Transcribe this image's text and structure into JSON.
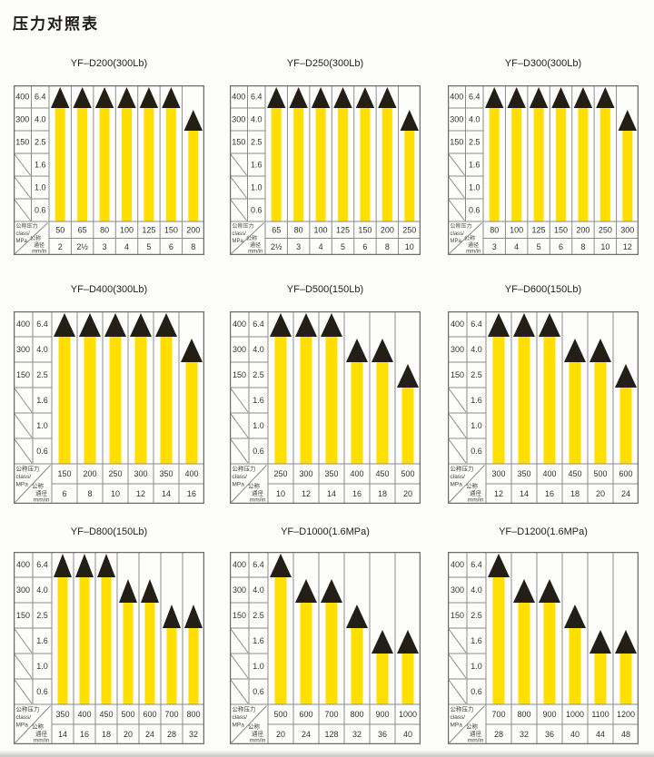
{
  "page_title": "压力对照表",
  "axis": {
    "class_rows": [
      "400",
      "300",
      "150"
    ],
    "mpa_rows": [
      "6.4",
      "4.0",
      "2.5",
      "1.6",
      "1.0",
      "0.6"
    ],
    "value_levels": [
      6.4,
      4.0,
      2.5,
      1.6,
      1.0,
      0.6
    ],
    "corner": {
      "pressure_line1": "公称压力",
      "pressure_line2": "class/",
      "pressure_line3": "MPa",
      "diameter_line1": "公称",
      "diameter_line2": "通径",
      "diameter_line3": "mm/in"
    }
  },
  "colors": {
    "bar": "#FFDE00",
    "marker": "#231F16",
    "grid": "#8E8C87",
    "border": "#6F6D68",
    "text": "#33312D",
    "tiny_text": "#45433F"
  },
  "chart_data": [
    {
      "type": "bar",
      "title": "YF–D200(300Lb)",
      "categories": [
        "50",
        "65",
        "80",
        "100",
        "125",
        "150",
        "200"
      ],
      "values": [
        6.4,
        6.4,
        6.4,
        6.4,
        6.4,
        6.4,
        4.0
      ],
      "diameters": [
        "2",
        "2½",
        "3",
        "4",
        "5",
        "6",
        "8"
      ],
      "ylabel": "MPa",
      "xlabel": "class",
      "ylim": [
        0.6,
        6.4
      ]
    },
    {
      "type": "bar",
      "title": "YF–D250(300Lb)",
      "categories": [
        "65",
        "80",
        "100",
        "125",
        "150",
        "200",
        "250"
      ],
      "values": [
        6.4,
        6.4,
        6.4,
        6.4,
        6.4,
        6.4,
        4.0
      ],
      "diameters": [
        "2½",
        "3",
        "4",
        "5",
        "6",
        "8",
        "10"
      ],
      "ylabel": "MPa",
      "xlabel": "class",
      "ylim": [
        0.6,
        6.4
      ]
    },
    {
      "type": "bar",
      "title": "YF–D300(300Lb)",
      "categories": [
        "80",
        "100",
        "125",
        "150",
        "200",
        "250",
        "300"
      ],
      "values": [
        6.4,
        6.4,
        6.4,
        6.4,
        6.4,
        6.4,
        4.0
      ],
      "diameters": [
        "3",
        "4",
        "5",
        "6",
        "8",
        "10",
        "12"
      ],
      "ylabel": "MPa",
      "xlabel": "class",
      "ylim": [
        0.6,
        6.4
      ]
    },
    {
      "type": "bar",
      "title": "YF–D400(300Lb)",
      "categories": [
        "150",
        "200",
        "250",
        "300",
        "350",
        "400"
      ],
      "values": [
        6.4,
        6.4,
        6.4,
        6.4,
        6.4,
        4.0
      ],
      "diameters": [
        "6",
        "8",
        "10",
        "12",
        "14",
        "16"
      ],
      "ylabel": "MPa",
      "xlabel": "class",
      "ylim": [
        0.6,
        6.4
      ]
    },
    {
      "type": "bar",
      "title": "YF–D500(150Lb)",
      "categories": [
        "250",
        "300",
        "350",
        "400",
        "450",
        "500"
      ],
      "values": [
        6.4,
        6.4,
        6.4,
        4.0,
        4.0,
        2.5
      ],
      "diameters": [
        "10",
        "12",
        "14",
        "16",
        "18",
        "20"
      ],
      "ylabel": "MPa",
      "xlabel": "class",
      "ylim": [
        0.6,
        6.4
      ]
    },
    {
      "type": "bar",
      "title": "YF–D600(150Lb)",
      "categories": [
        "300",
        "350",
        "400",
        "450",
        "500",
        "600"
      ],
      "values": [
        6.4,
        6.4,
        6.4,
        4.0,
        4.0,
        2.5
      ],
      "diameters": [
        "12",
        "14",
        "16",
        "18",
        "20",
        "24"
      ],
      "ylabel": "MPa",
      "xlabel": "class",
      "ylim": [
        0.6,
        6.4
      ]
    },
    {
      "type": "bar",
      "title": "YF–D800(150Lb)",
      "categories": [
        "350",
        "400",
        "450",
        "500",
        "600",
        "700",
        "800"
      ],
      "values": [
        6.4,
        6.4,
        6.4,
        4.0,
        4.0,
        2.5,
        2.5
      ],
      "diameters": [
        "14",
        "16",
        "18",
        "20",
        "24",
        "28",
        "32"
      ],
      "ylabel": "MPa",
      "xlabel": "class",
      "ylim": [
        0.6,
        6.4
      ]
    },
    {
      "type": "bar",
      "title": "YF–D1000(1.6MPa)",
      "categories": [
        "500",
        "600",
        "700",
        "800",
        "900",
        "1000"
      ],
      "values": [
        6.4,
        4.0,
        4.0,
        2.5,
        1.6,
        1.6
      ],
      "diameters": [
        "20",
        "24",
        "128",
        "32",
        "36",
        "40"
      ],
      "ylabel": "MPa",
      "xlabel": "class",
      "ylim": [
        0.6,
        6.4
      ]
    },
    {
      "type": "bar",
      "title": "YF–D1200(1.6MPa)",
      "categories": [
        "700",
        "800",
        "900",
        "1000",
        "1100",
        "1200"
      ],
      "values": [
        6.4,
        4.0,
        4.0,
        2.5,
        1.6,
        1.6
      ],
      "diameters": [
        "28",
        "32",
        "36",
        "40",
        "44",
        "48"
      ],
      "ylabel": "MPa",
      "xlabel": "class",
      "ylim": [
        0.6,
        6.4
      ]
    }
  ]
}
